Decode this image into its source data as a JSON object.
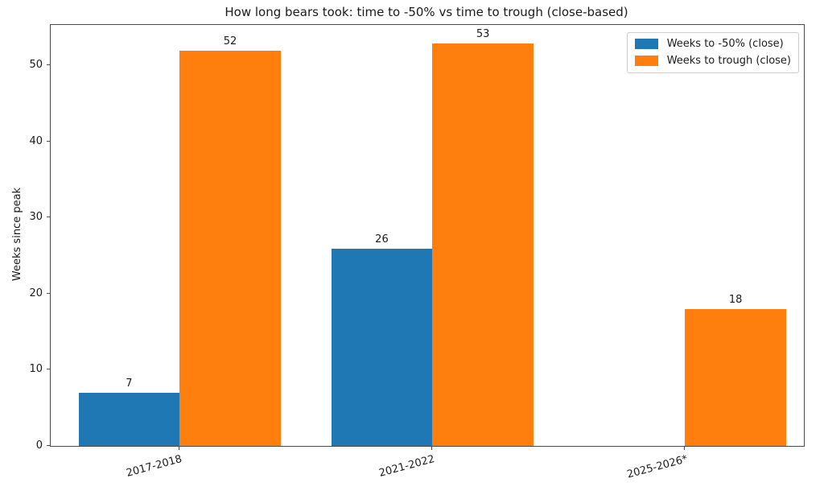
{
  "chart_data": {
    "type": "bar",
    "title": "How long bears took: time to -50% vs time to trough (close-based)",
    "ylabel": "Weeks since peak",
    "xlabel": "",
    "categories": [
      "2017-2018",
      "2021-2022",
      "2025-2026*"
    ],
    "series": [
      {
        "name": "Weeks to -50% (close)",
        "color": "#1f77b4",
        "values": [
          7,
          26,
          null
        ]
      },
      {
        "name": "Weeks to trough (close)",
        "color": "#ff7f0e",
        "values": [
          52,
          53,
          18
        ]
      }
    ],
    "bar_width": 0.4,
    "yticks": [
      0,
      10,
      20,
      30,
      40,
      50
    ],
    "ylim": [
      0,
      55.4
    ],
    "xlim": [
      -0.51,
      2.47
    ],
    "grid": false,
    "legend_position": "upper right",
    "xtick_rotation": 15,
    "colors": {
      "spine": "#4a4a4a",
      "text": "#1a1a1a",
      "legend_border": "#cccccc"
    }
  }
}
